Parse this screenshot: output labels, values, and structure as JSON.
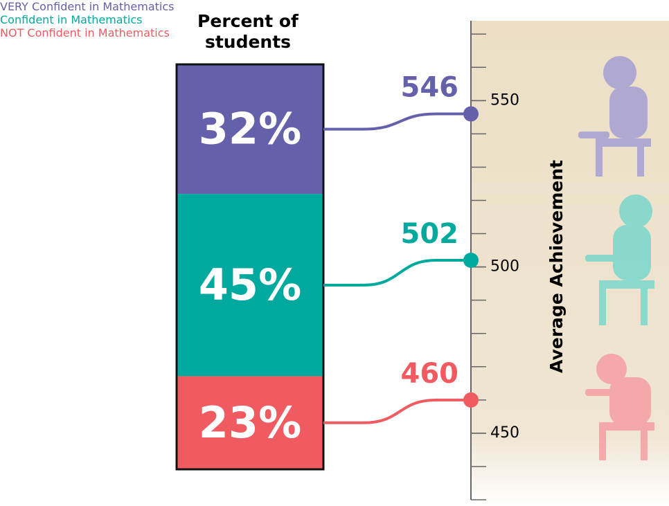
{
  "chart_data": [
    {
      "type": "stacked-bar",
      "title": "Percent of students",
      "categories": [
        "VERY Confident in Mathematics",
        "Confident in Mathematics",
        "NOT Confident in Mathematics"
      ],
      "values": [
        32,
        45,
        23
      ],
      "value_labels": [
        "32%",
        "45%",
        "23%"
      ],
      "colors": [
        "#6460aa",
        "#00a99d",
        "#f05b61"
      ]
    },
    {
      "type": "dot",
      "ylabel": "Average Achievement",
      "values": [
        546,
        502,
        460
      ],
      "colors": [
        "#6460aa",
        "#00a99d",
        "#f05b61"
      ],
      "ylim": [
        430,
        574
      ],
      "yticks": [
        450,
        500,
        550
      ],
      "minor_yticks": [
        430,
        440,
        450,
        460,
        470,
        480,
        490,
        500,
        510,
        520,
        530,
        540,
        550,
        560,
        570
      ]
    }
  ]
}
